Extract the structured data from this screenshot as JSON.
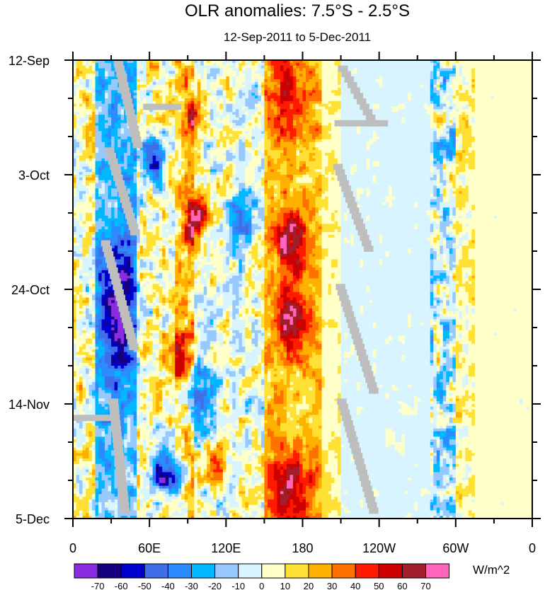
{
  "chart_data": {
    "type": "heatmap",
    "title": "OLR anomalies: 7.5°S - 2.5°S",
    "subtitle": "12-Sep-2011 to 5-Dec-2011",
    "x_ticks": [
      {
        "label": "0",
        "lon": 0
      },
      {
        "label": "60E",
        "lon": 60
      },
      {
        "label": "120E",
        "lon": 120
      },
      {
        "label": "180",
        "lon": 180
      },
      {
        "label": "120W",
        "lon": 240
      },
      {
        "label": "60W",
        "lon": 300
      },
      {
        "label": "0",
        "lon": 360
      }
    ],
    "xlim": [
      0,
      360
    ],
    "y_ticks": [
      {
        "label": "12-Sep",
        "day": 0
      },
      {
        "label": "3-Oct",
        "day": 21
      },
      {
        "label": "24-Oct",
        "day": 42
      },
      {
        "label": "14-Nov",
        "day": 63
      },
      {
        "label": "5-Dec",
        "day": 84
      }
    ],
    "ylim_days": [
      0,
      84
    ],
    "colorbar": {
      "units": "W/m^2",
      "levels": [
        -70,
        -60,
        -50,
        -40,
        -30,
        -20,
        -10,
        0,
        10,
        20,
        30,
        40,
        50,
        60,
        70
      ],
      "labels": [
        "-70",
        "-60",
        "-50",
        "-40",
        "-30",
        "-20",
        "-10",
        "0",
        "10",
        "20",
        "30",
        "40",
        "50",
        "60",
        "70"
      ],
      "colors": [
        "#8b2be2",
        "#16007f",
        "#0000cc",
        "#3f6ee8",
        "#2a8cff",
        "#00b8ff",
        "#97c9ff",
        "#d8f4fe",
        "#ffffc8",
        "#ffe135",
        "#ffb100",
        "#ff7200",
        "#ff1a00",
        "#cc0000",
        "#a01f2a",
        "#ff66bb"
      ]
    },
    "missing_color": "#bebebe",
    "bands": [
      {
        "from": 0,
        "to": 18,
        "center": 5,
        "spread": 38,
        "scale": 14
      },
      {
        "from": 18,
        "to": 50,
        "center": -22,
        "spread": 28,
        "scale": 12
      },
      {
        "from": 50,
        "to": 80,
        "center": 5,
        "spread": 38,
        "scale": 12
      },
      {
        "from": 80,
        "to": 95,
        "center": 18,
        "spread": 35,
        "scale": 12
      },
      {
        "from": 95,
        "to": 150,
        "center": 0,
        "spread": 34,
        "scale": 11
      },
      {
        "from": 150,
        "to": 195,
        "center": 20,
        "spread": 26,
        "scale": 10
      },
      {
        "from": 195,
        "to": 210,
        "center": 8,
        "spread": 10,
        "scale": 18
      },
      {
        "from": 210,
        "to": 280,
        "center": -3,
        "spread": 7,
        "scale": 28
      },
      {
        "from": 280,
        "to": 300,
        "center": -8,
        "spread": 42,
        "scale": 7
      },
      {
        "from": 300,
        "to": 315,
        "center": 8,
        "spread": 20,
        "scale": 12
      },
      {
        "from": 315,
        "to": 360,
        "center": 4,
        "spread": 6,
        "scale": 30
      }
    ],
    "blobs": [
      {
        "lon": 95,
        "day": 11,
        "value": 40,
        "r_lon": 10,
        "r_day": 4
      },
      {
        "lon": 168,
        "day": 6,
        "value": 32,
        "r_lon": 15,
        "r_day": 8
      },
      {
        "lon": 97,
        "day": 29,
        "value": 55,
        "r_lon": 9,
        "r_day": 5
      },
      {
        "lon": 170,
        "day": 33,
        "value": 48,
        "r_lon": 12,
        "r_day": 6
      },
      {
        "lon": 172,
        "day": 47,
        "value": 52,
        "r_lon": 13,
        "r_day": 6
      },
      {
        "lon": 82,
        "day": 54,
        "value": 35,
        "r_lon": 10,
        "r_day": 5
      },
      {
        "lon": 168,
        "day": 78,
        "value": 45,
        "r_lon": 20,
        "r_day": 6
      },
      {
        "lon": 110,
        "day": 74,
        "value": 35,
        "r_lon": 9,
        "r_day": 4
      },
      {
        "lon": 35,
        "day": 45,
        "value": -55,
        "r_lon": 14,
        "r_day": 12
      },
      {
        "lon": 62,
        "day": 18,
        "value": -60,
        "r_lon": 9,
        "r_day": 4
      },
      {
        "lon": 74,
        "day": 76,
        "value": -65,
        "r_lon": 14,
        "r_day": 4
      },
      {
        "lon": 100,
        "day": 62,
        "value": -48,
        "r_lon": 12,
        "r_day": 6
      },
      {
        "lon": 132,
        "day": 29,
        "value": -45,
        "r_lon": 10,
        "r_day": 5
      }
    ],
    "missing_segments": [
      {
        "lon1": 32,
        "day1": 0,
        "lon2": 47,
        "day2": 15,
        "width": 3
      },
      {
        "lon1": 25,
        "day1": 16,
        "lon2": 45,
        "day2": 31,
        "width": 3
      },
      {
        "lon1": 22,
        "day1": 33,
        "lon2": 44,
        "day2": 52,
        "width": 3
      },
      {
        "lon1": 28,
        "day1": 62,
        "lon2": 37,
        "day2": 82,
        "width": 3
      },
      {
        "lon1": 0,
        "day1": 65,
        "lon2": 27,
        "day2": 65,
        "width": 2
      },
      {
        "lon1": 55,
        "day1": 8,
        "lon2": 80,
        "day2": 8,
        "width": 2
      },
      {
        "lon1": 208,
        "day1": 1,
        "lon2": 232,
        "day2": 11,
        "width": 3
      },
      {
        "lon1": 204,
        "day1": 19,
        "lon2": 228,
        "day2": 34,
        "width": 3
      },
      {
        "lon1": 206,
        "day1": 41,
        "lon2": 232,
        "day2": 60,
        "width": 3
      },
      {
        "lon1": 207,
        "day1": 62,
        "lon2": 232,
        "day2": 82,
        "width": 3
      },
      {
        "lon1": 205,
        "day1": 11,
        "lon2": 242,
        "day2": 11,
        "width": 2
      }
    ]
  }
}
